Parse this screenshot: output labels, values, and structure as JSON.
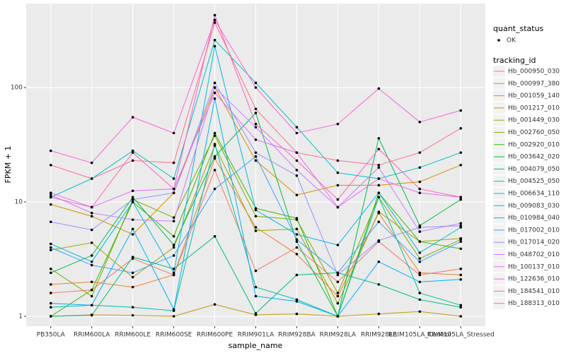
{
  "chart_data": {
    "type": "line",
    "x_label": "sample_name",
    "y_label": "FPKM + 1",
    "categories": [
      "PB350LA",
      "RRIM600LA",
      "RRIM600LE",
      "RRIM600SE",
      "RRIM600PE",
      "RRIM901LA",
      "RRIM928BA",
      "RRIM928LA",
      "RRIM928LE",
      "RRIM105LA_Control",
      "RRIM105LA_Stressed"
    ],
    "log_scale": true,
    "grid": true,
    "ylim": [
      0.82,
      543
    ],
    "yticks": [
      1,
      10,
      100
    ],
    "point_legend_title": "quant_status",
    "point_legend_label": "OK",
    "point_color": "#000000",
    "legend_title": "tracking_id",
    "series": [
      {
        "name": "Hb_000950_030",
        "color": "#F8766D",
        "values": [
          1.6,
          1.7,
          3.2,
          2.3,
          19,
          2.5,
          4.0,
          2.0,
          4.5,
          2.3,
          2.6
        ]
      },
      {
        "name": "Hb_000997_380",
        "color": "#EA8331",
        "values": [
          1.9,
          2.0,
          1.8,
          2.3,
          24,
          6.0,
          3.5,
          1.5,
          8.0,
          2.4,
          2.3
        ]
      },
      {
        "name": "Hb_001059_140",
        "color": "#D89000",
        "values": [
          9.5,
          7.5,
          5.2,
          12,
          100,
          23,
          11.5,
          14,
          14,
          15,
          21
        ]
      },
      {
        "name": "Hb_001217_010",
        "color": "#C09B00",
        "values": [
          1.0,
          1.03,
          1.02,
          1.0,
          1.27,
          1.03,
          1.05,
          1.0,
          1.05,
          1.1,
          1.0
        ]
      },
      {
        "name": "Hb_001449_030",
        "color": "#A3A500",
        "values": [
          3.8,
          4.4,
          2.2,
          4.0,
          31,
          5.6,
          5.8,
          1.3,
          8.2,
          4.5,
          4.8
        ]
      },
      {
        "name": "Hb_002760_050",
        "color": "#7CAE00",
        "values": [
          2.6,
          1.5,
          10.5,
          7.3,
          38,
          7.5,
          7.0,
          1.6,
          11,
          3.2,
          4.7
        ]
      },
      {
        "name": "Hb_002920_010",
        "color": "#39B600",
        "values": [
          1.0,
          1.7,
          10,
          5.0,
          40,
          8.8,
          7.2,
          1.0,
          12,
          4.5,
          3.9
        ]
      },
      {
        "name": "Hb_003642_020",
        "color": "#00BB4E",
        "values": [
          2.4,
          3.4,
          11,
          4.2,
          25,
          60,
          4.5,
          1.0,
          36,
          6.2,
          10.5
        ]
      },
      {
        "name": "Hb_004079_050",
        "color": "#00BF7D",
        "values": [
          1.0,
          1.02,
          3.3,
          2.6,
          5.0,
          1.06,
          2.3,
          2.4,
          1.9,
          1.4,
          1.2
        ]
      },
      {
        "name": "Hb_004525_050",
        "color": "#00C1A3",
        "values": [
          1.2,
          1.25,
          1.2,
          1.12,
          32,
          1.8,
          1.4,
          1.0,
          11,
          1.6,
          1.25
        ]
      },
      {
        "name": "Hb_006634_110",
        "color": "#00BFC4",
        "values": [
          11,
          16,
          28,
          16,
          260,
          110,
          45,
          18,
          16,
          20,
          27
        ]
      },
      {
        "name": "Hb_009083_030",
        "color": "#00BAE0",
        "values": [
          4.3,
          3.0,
          10,
          2.4,
          230,
          8.5,
          5.2,
          4.2,
          12,
          3.6,
          6.0
        ]
      },
      {
        "name": "Hb_010984_040",
        "color": "#00B0F6",
        "values": [
          1.3,
          1.25,
          5.8,
          1.15,
          80,
          1.5,
          1.35,
          1.0,
          3.0,
          2.0,
          2.1
        ]
      },
      {
        "name": "Hb_017002_010",
        "color": "#35A2FF",
        "values": [
          4.0,
          2.8,
          2.4,
          3.4,
          13,
          25,
          4.7,
          2.4,
          6.7,
          3.0,
          4.5
        ]
      },
      {
        "name": "Hb_017014_020",
        "color": "#9590FF",
        "values": [
          6.7,
          5.7,
          10.5,
          12,
          110,
          27,
          17,
          2.3,
          4.6,
          6.0,
          6.2
        ]
      },
      {
        "name": "Hb_048702_010",
        "color": "#C77CFF",
        "values": [
          11.5,
          8.0,
          7.0,
          6.8,
          100,
          45,
          19,
          9.0,
          20,
          5.5,
          6.5
        ]
      },
      {
        "name": "Hb_100137_010",
        "color": "#E76BF3",
        "values": [
          12,
          9.0,
          12.5,
          13,
          90,
          35,
          27,
          9,
          16,
          12,
          11
        ]
      },
      {
        "name": "Hb_122636_010",
        "color": "#FA62DB",
        "values": [
          28,
          22,
          55,
          40,
          390,
          100,
          40,
          48,
          98,
          50,
          63
        ]
      },
      {
        "name": "Hb_184541_010",
        "color": "#FF62BC",
        "values": [
          11,
          9,
          27,
          13,
          430,
          48,
          23,
          10.5,
          29,
          13,
          11
        ]
      },
      {
        "name": "Hb_188313_010",
        "color": "#FF6C91",
        "values": [
          21,
          16,
          23,
          22,
          370,
          65,
          27,
          23,
          21,
          27,
          44
        ]
      }
    ]
  }
}
